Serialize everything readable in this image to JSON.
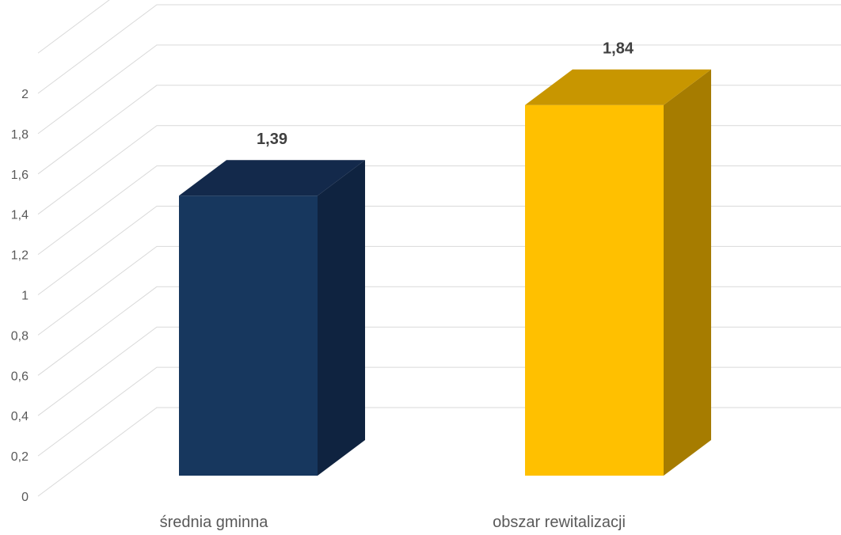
{
  "chart_data": {
    "type": "bar",
    "style": "3d-column",
    "categories": [
      "średnia gminna",
      "obszar rewitalizacji"
    ],
    "values": [
      1.39,
      1.84
    ],
    "data_labels": [
      "1,39",
      "1,84"
    ],
    "ylim": [
      0,
      2.2
    ],
    "yticks": [
      0,
      0.2,
      0.4,
      0.6,
      0.8,
      1,
      1.2,
      1.4,
      1.6,
      1.8,
      2
    ],
    "ytick_labels": [
      "0",
      "0,2",
      "0,4",
      "0,6",
      "0,8",
      "1",
      "1,2",
      "1,4",
      "1,6",
      "1,8",
      "2"
    ],
    "grid": true,
    "legend": false,
    "colors": {
      "series": [
        "#17375e",
        "#ffc000"
      ],
      "top": [
        "#13294b",
        "#c89600"
      ],
      "side": [
        "#0f2340",
        "#a67c00"
      ],
      "grid": "#d9d9d9",
      "axis_text": "#595959",
      "label_text": "#404040"
    }
  }
}
